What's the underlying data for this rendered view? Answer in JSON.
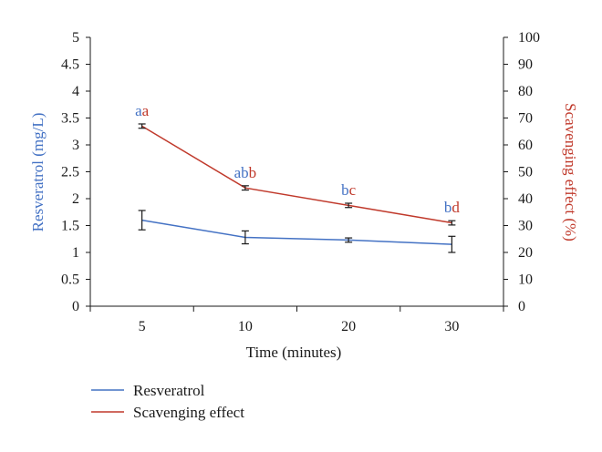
{
  "chart_data": {
    "type": "line",
    "categories": [
      "5",
      "10",
      "20",
      "30"
    ],
    "xlabel": "Time (minutes)",
    "ylabel_left": "Resveratrol (mg/L)",
    "ylabel_right": "Scavenging effect (%)",
    "ylim_left": [
      0,
      5
    ],
    "yticks_left": [
      "0",
      "0.5",
      "1",
      "1.5",
      "2",
      "2.5",
      "3",
      "3.5",
      "4",
      "4.5",
      "5"
    ],
    "ylim_right": [
      0,
      100
    ],
    "yticks_right": [
      "0",
      "10",
      "20",
      "30",
      "40",
      "50",
      "60",
      "70",
      "80",
      "90",
      "100"
    ],
    "grid": false,
    "legend_position": "bottom-left",
    "series": [
      {
        "name": "Resveratrol",
        "axis": "left",
        "color": "#4472c4",
        "values": [
          1.6,
          1.28,
          1.23,
          1.15
        ],
        "errors": [
          0.18,
          0.12,
          0.04,
          0.15
        ],
        "labels": [
          "a",
          "ab",
          "b",
          "b"
        ]
      },
      {
        "name": "Scavenging effect",
        "axis": "right",
        "color": "#c0392b",
        "values": [
          67,
          44,
          37.5,
          31
        ],
        "errors": [
          0.8,
          0.8,
          0.8,
          0.8
        ],
        "labels": [
          "a",
          "b",
          "c",
          "d"
        ]
      }
    ]
  }
}
